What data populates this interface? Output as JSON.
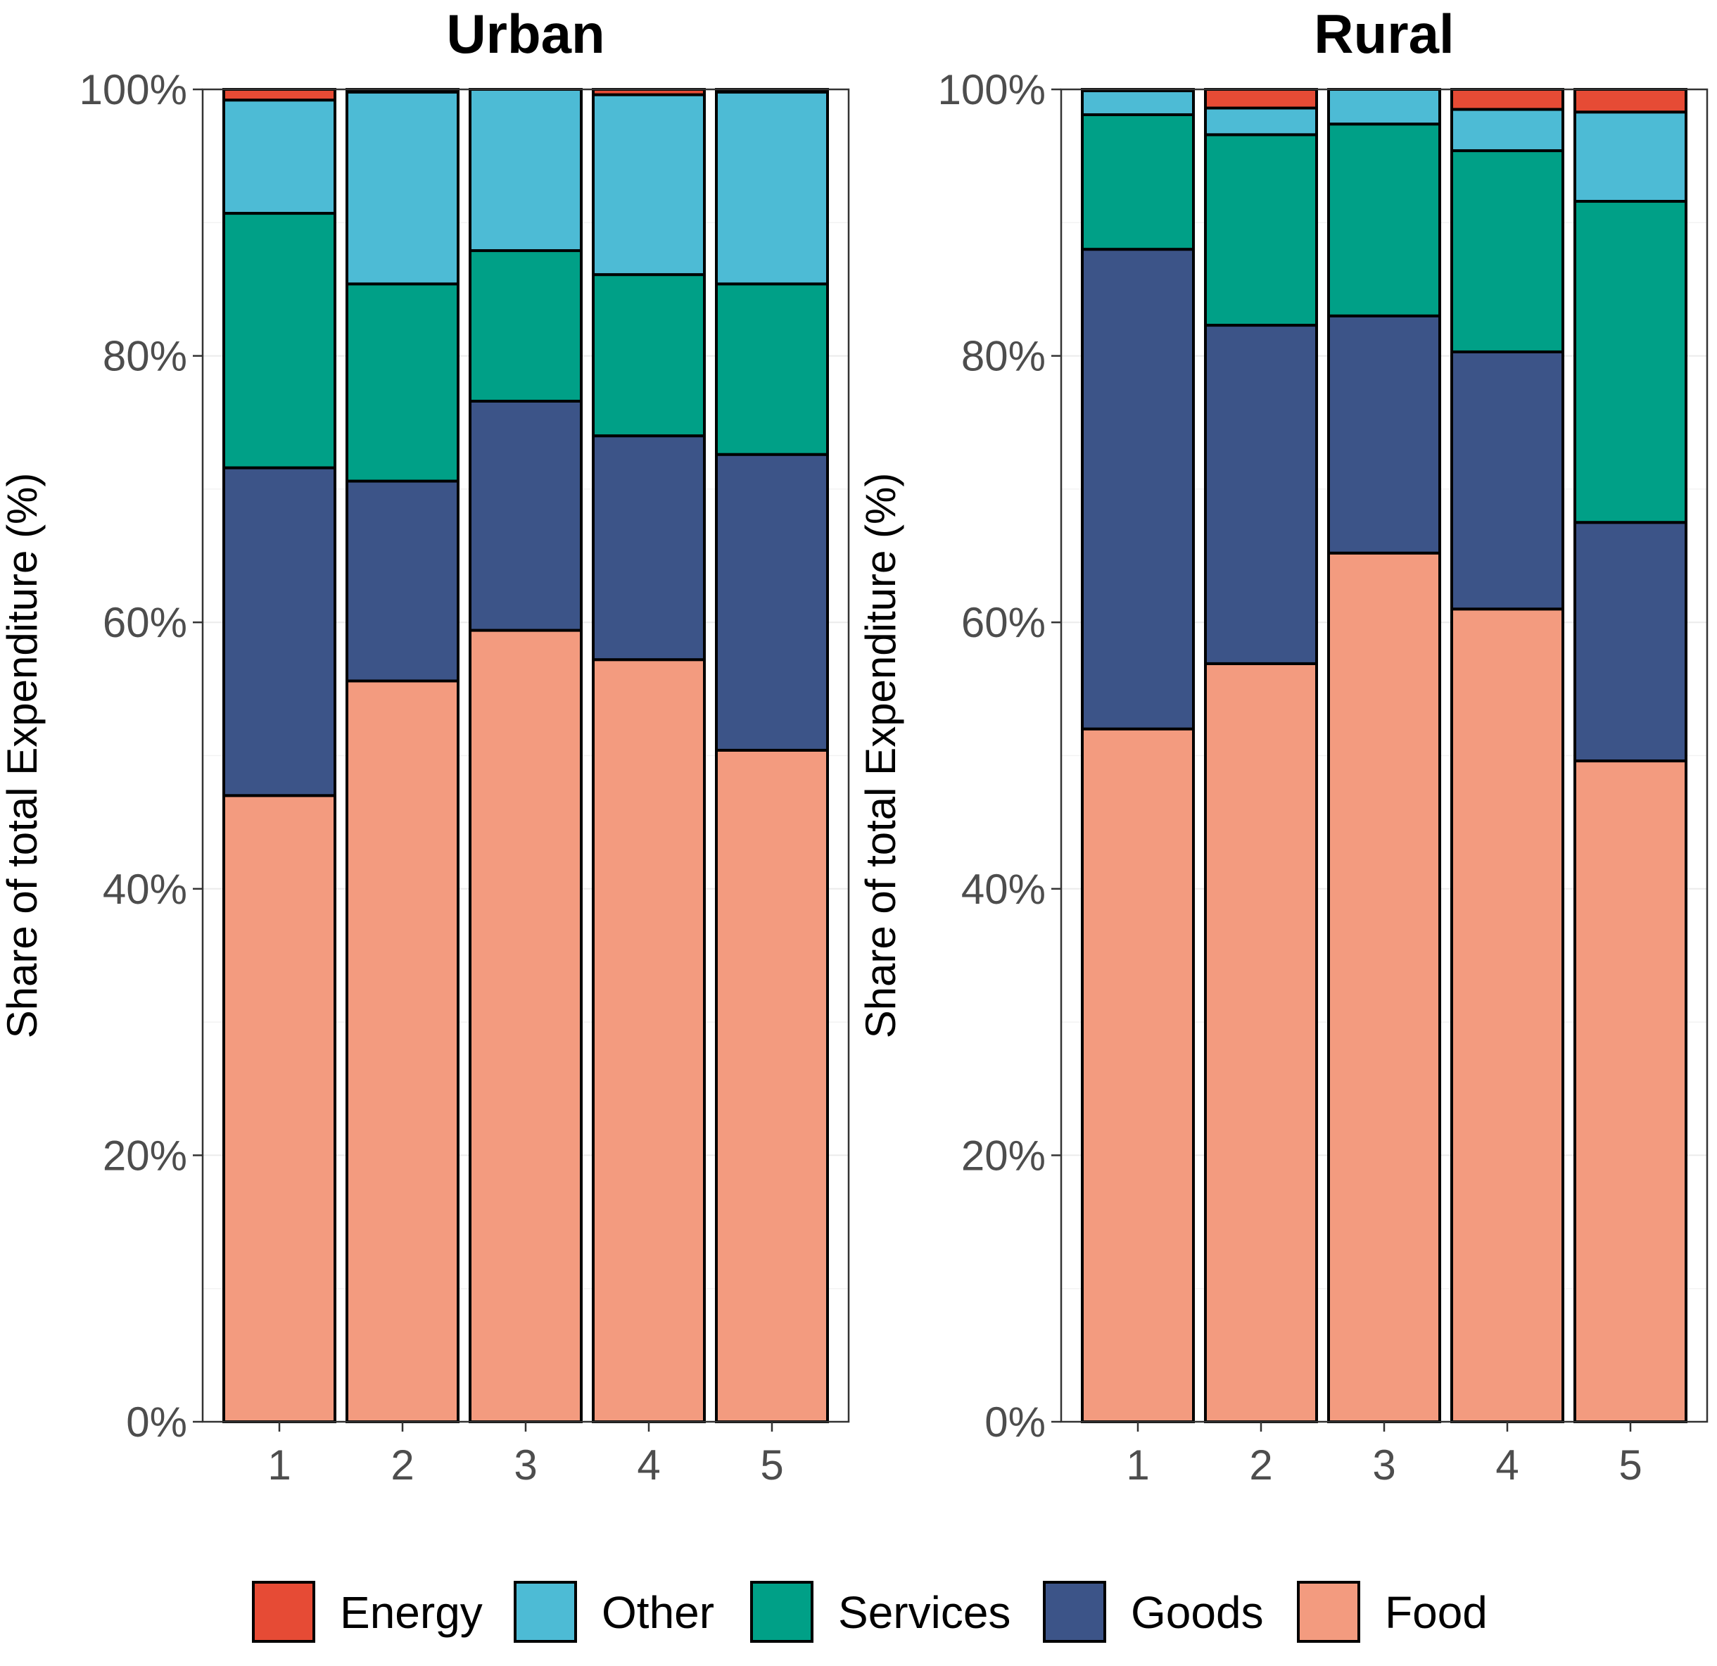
{
  "chart_data": {
    "type": "bar",
    "stacked": true,
    "ylabel": "Share of total Expenditure (%)",
    "ylim": [
      0,
      100
    ],
    "y_ticks": [
      "0%",
      "20%",
      "40%",
      "60%",
      "80%",
      "100%"
    ],
    "legend": {
      "position": "bottom",
      "items": [
        {
          "name": "Energy",
          "color": "#E64B35"
        },
        {
          "name": "Other",
          "color": "#4DBBD5"
        },
        {
          "name": "Services",
          "color": "#00A087"
        },
        {
          "name": "Goods",
          "color": "#3C5488"
        },
        {
          "name": "Food",
          "color": "#F39B7F"
        }
      ]
    },
    "panels": [
      {
        "title": "Urban",
        "categories": [
          "1",
          "2",
          "3",
          "4",
          "5"
        ],
        "series": [
          {
            "name": "Food",
            "values": [
              47,
              55.6,
              59.4,
              57.2,
              50.4
            ]
          },
          {
            "name": "Goods",
            "values": [
              24.6,
              15,
              17.2,
              16.8,
              22.2
            ]
          },
          {
            "name": "Services",
            "values": [
              19.1,
              14.8,
              11.3,
              12.1,
              12.8
            ]
          },
          {
            "name": "Other",
            "values": [
              8.5,
              14.4,
              12.1,
              13.5,
              14.4
            ]
          },
          {
            "name": "Energy",
            "values": [
              0.8,
              0.2,
              0,
              0.4,
              0.2
            ]
          }
        ]
      },
      {
        "title": "Rural",
        "categories": [
          "1",
          "2",
          "3",
          "4",
          "5"
        ],
        "series": [
          {
            "name": "Food",
            "values": [
              52,
              56.9,
              65.2,
              61,
              49.6
            ]
          },
          {
            "name": "Goods",
            "values": [
              36,
              25.4,
              17.8,
              19.3,
              17.9
            ]
          },
          {
            "name": "Services",
            "values": [
              10.1,
              14.3,
              14.4,
              15.1,
              24.1
            ]
          },
          {
            "name": "Other",
            "values": [
              1.8,
              2,
              2.6,
              3.1,
              6.7
            ]
          },
          {
            "name": "Energy",
            "values": [
              0.1,
              1.4,
              0,
              1.5,
              1.7
            ]
          }
        ]
      }
    ]
  }
}
